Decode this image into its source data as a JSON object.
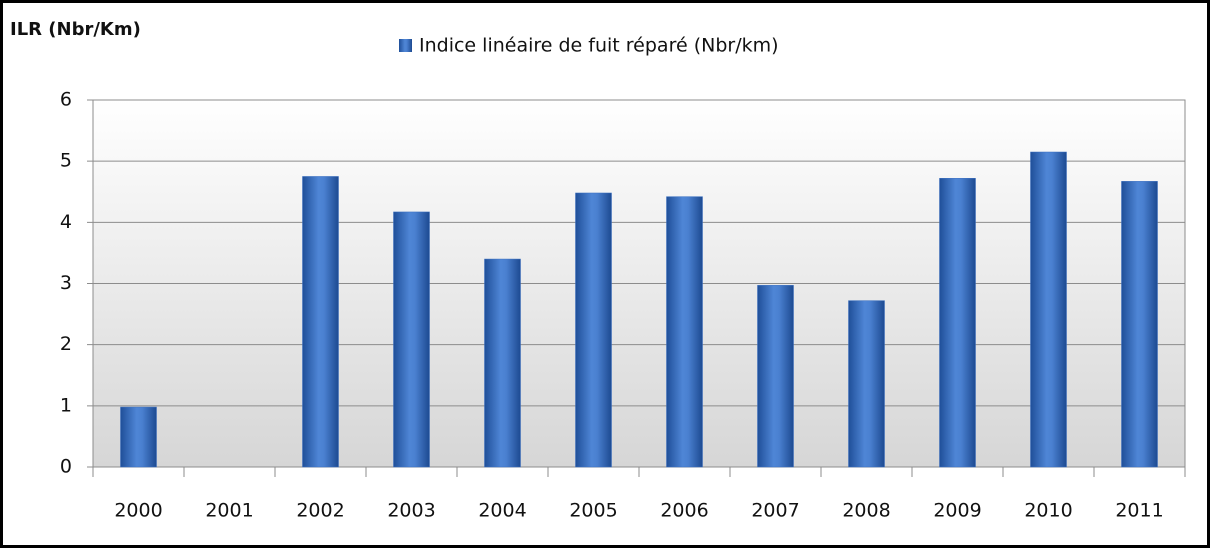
{
  "chart_data": {
    "type": "bar",
    "y_axis_title": "ILR (Nbr/Km)",
    "categories": [
      "2000",
      "2001",
      "2002",
      "2003",
      "2004",
      "2005",
      "2006",
      "2007",
      "2008",
      "2009",
      "2010",
      "2011"
    ],
    "series": [
      {
        "name": "Indice linéaire de fuit réparé (Nbr/km)",
        "color": "#3a6fc0",
        "values": [
          0.98,
          0,
          4.75,
          4.17,
          3.4,
          4.48,
          4.42,
          2.97,
          2.72,
          4.72,
          5.15,
          4.67
        ]
      }
    ],
    "ylim": [
      0,
      6
    ],
    "yticks": [
      0,
      1,
      2,
      3,
      4,
      5,
      6
    ],
    "grid": true,
    "legend": "top"
  }
}
